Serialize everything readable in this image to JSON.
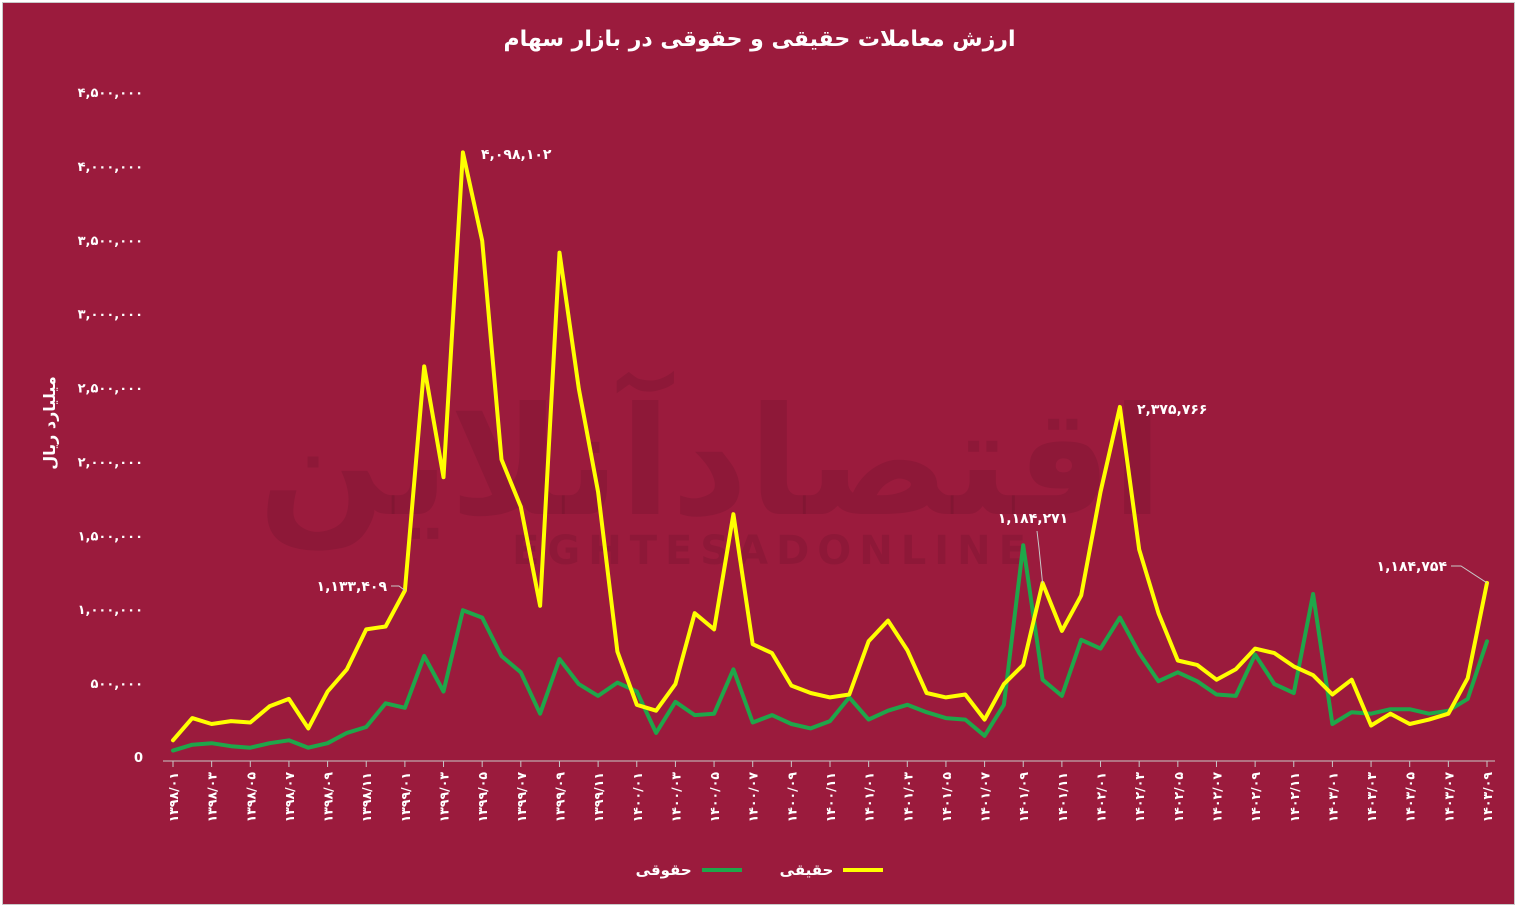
{
  "title": "ارزش معاملات حقیقی و حقوقی در بازار سهام",
  "watermark": {
    "text": "اقتصادآنلاین",
    "sub": "EGHTESADONLINE"
  },
  "colors": {
    "background": "#9b1b3d",
    "haghighi": "#ffff00",
    "hoghooghi": "#1fa64a",
    "text": "#ffffff"
  },
  "chart_data": {
    "type": "line",
    "title": "ارزش معاملات حقیقی و حقوقی در بازار سهام",
    "ylabel": "میلیارد ریال",
    "xlabel": "",
    "ylim": [
      0,
      4500000
    ],
    "y_ticks": [
      0,
      500000,
      1000000,
      1500000,
      2000000,
      2500000,
      3000000,
      3500000,
      4000000,
      4500000
    ],
    "y_tick_labels": [
      "0",
      "۵۰۰,۰۰۰",
      "۱,۰۰۰,۰۰۰",
      "۱,۵۰۰,۰۰۰",
      "۲,۰۰۰,۰۰۰",
      "۲,۵۰۰,۰۰۰",
      "۳,۰۰۰,۰۰۰",
      "۳,۵۰۰,۰۰۰",
      "۴,۰۰۰,۰۰۰",
      "۴,۵۰۰,۰۰۰"
    ],
    "grid": false,
    "legend_position": "bottom",
    "x_tick_labels": [
      "۱۳۹۸/۰۱",
      "۱۳۹۸/۰۳",
      "۱۳۹۸/۰۵",
      "۱۳۹۸/۰۷",
      "۱۳۹۸/۰۹",
      "۱۳۹۸/۱۱",
      "۱۳۹۹/۰۱",
      "۱۳۹۹/۰۳",
      "۱۳۹۹/۰۵",
      "۱۳۹۹/۰۷",
      "۱۳۹۹/۰۹",
      "۱۳۹۹/۱۱",
      "۱۴۰۰/۰۱",
      "۱۴۰۰/۰۳",
      "۱۴۰۰/۰۵",
      "۱۴۰۰/۰۷",
      "۱۴۰۰/۰۹",
      "۱۴۰۰/۱۱",
      "۱۴۰۱/۰۱",
      "۱۴۰۱/۰۳",
      "۱۴۰۱/۰۵",
      "۱۴۰۱/۰۷",
      "۱۴۰۱/۰۹",
      "۱۴۰۱/۱۱",
      "۱۴۰۲/۰۱",
      "۱۴۰۲/۰۳",
      "۱۴۰۲/۰۵",
      "۱۴۰۲/۰۷",
      "۱۴۰۲/۰۹",
      "۱۴۰۲/۱۱",
      "۱۴۰۳/۰۱",
      "۱۴۰۳/۰۳",
      "۱۴۰۳/۰۵",
      "۱۴۰۳/۰۷",
      "۱۴۰۳/۰۹"
    ],
    "series": [
      {
        "name": "حقیقی",
        "color": "#ffff00",
        "values": [
          120000,
          270000,
          230000,
          250000,
          240000,
          350000,
          400000,
          200000,
          450000,
          600000,
          870000,
          890000,
          1133409,
          2650000,
          1900000,
          4098102,
          3500000,
          2020000,
          1700000,
          1030000,
          3420000,
          2500000,
          1800000,
          720000,
          360000,
          320000,
          500000,
          980000,
          870000,
          1650000,
          770000,
          710000,
          490000,
          440000,
          410000,
          430000,
          790000,
          930000,
          730000,
          440000,
          410000,
          430000,
          260000,
          500000,
          630000,
          1184271,
          860000,
          1100000,
          1800000,
          2375766,
          1410000,
          980000,
          660000,
          630000,
          530000,
          600000,
          740000,
          710000,
          620000,
          560000,
          430000,
          530000,
          220000,
          300000,
          230000,
          260000,
          300000,
          540000,
          1184754
        ]
      },
      {
        "name": "حقوقی",
        "color": "#1fa64a",
        "values": [
          50000,
          90000,
          100000,
          80000,
          70000,
          100000,
          120000,
          70000,
          100000,
          170000,
          210000,
          370000,
          340000,
          690000,
          450000,
          1000000,
          950000,
          690000,
          580000,
          300000,
          670000,
          500000,
          420000,
          510000,
          450000,
          170000,
          380000,
          290000,
          300000,
          600000,
          240000,
          290000,
          230000,
          200000,
          250000,
          410000,
          260000,
          320000,
          360000,
          310000,
          270000,
          260000,
          150000,
          360000,
          1440000,
          530000,
          420000,
          800000,
          740000,
          950000,
          710000,
          520000,
          580000,
          520000,
          430000,
          420000,
          700000,
          500000,
          440000,
          1110000,
          230000,
          310000,
          300000,
          330000,
          330000,
          300000,
          320000,
          400000,
          790000
        ]
      }
    ],
    "annotations": [
      {
        "label": "۴,۰۹۸,۱۰۲",
        "series": "حقیقی",
        "index": 15
      },
      {
        "label": "۱,۱۳۳,۴۰۹",
        "series": "حقیقی",
        "index": 12
      },
      {
        "label": "۱,۱۸۴,۲۷۱",
        "series": "حقیقی",
        "index": 45
      },
      {
        "label": "۲,۳۷۵,۷۶۶",
        "series": "حقیقی",
        "index": 49
      },
      {
        "label": "۱,۱۸۴,۷۵۴",
        "series": "حقیقی",
        "index": 68
      }
    ]
  }
}
